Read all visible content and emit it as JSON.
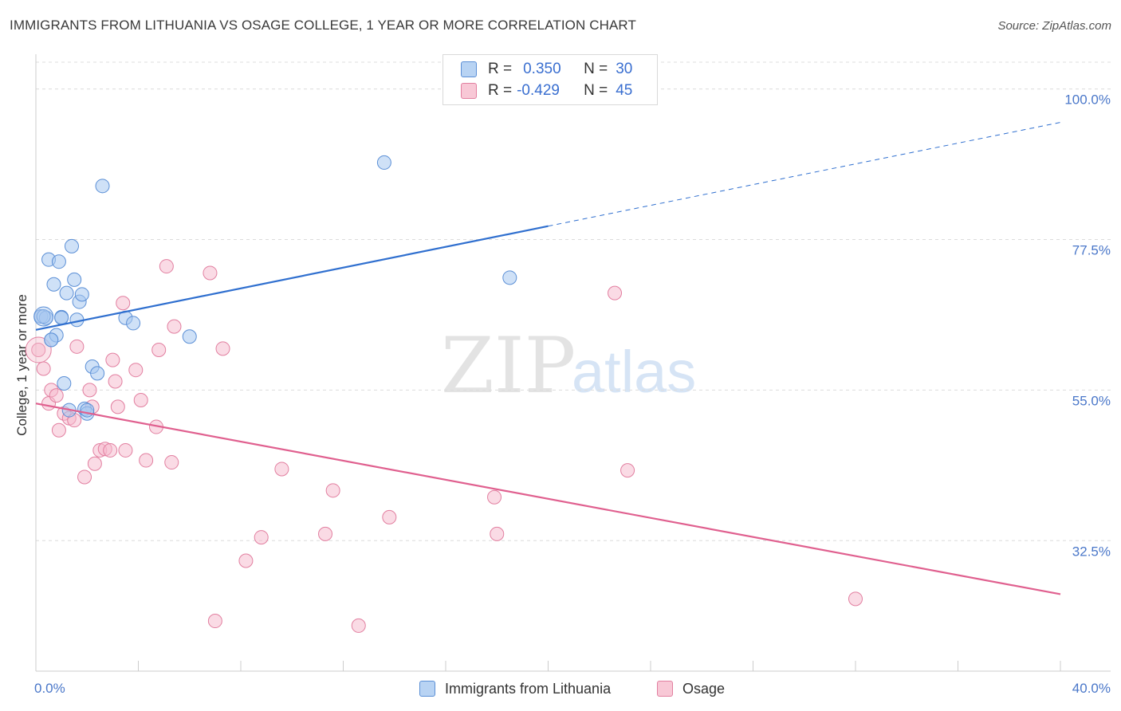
{
  "title": "IMMIGRANTS FROM LITHUANIA VS OSAGE COLLEGE, 1 YEAR OR MORE CORRELATION CHART",
  "source": "Source: ZipAtlas.com",
  "watermark": {
    "zip": "ZIP",
    "atlas": "atlas"
  },
  "legend_top": {
    "rows": [
      {
        "r_label": "R =",
        "r_value": "0.350",
        "n_label": "N =",
        "n_value": "30"
      },
      {
        "r_label": "R =",
        "r_value": "-0.429",
        "n_label": "N =",
        "n_value": "45"
      }
    ]
  },
  "legend_bottom": {
    "items": [
      {
        "label": "Immigrants from Lithuania"
      },
      {
        "label": "Osage"
      }
    ]
  },
  "colors": {
    "blue_fill": "#a8c8f0",
    "blue_stroke": "#5b8fd6",
    "blue_line": "#2f6fcf",
    "pink_fill": "#f5b8cb",
    "pink_stroke": "#e27fa0",
    "pink_line": "#e0608f",
    "grid": "#dcdcdc",
    "axis_text": "#4a77c9"
  },
  "chart_data": {
    "type": "scatter",
    "title": "IMMIGRANTS FROM LITHUANIA VS OSAGE COLLEGE, 1 YEAR OR MORE CORRELATION CHART",
    "xlabel": "",
    "ylabel": "College, 1 year or more",
    "xlim": [
      0,
      40
    ],
    "ylim": [
      13,
      104
    ],
    "x_tick_labels": [
      "0.0%",
      "40.0%"
    ],
    "y_ticks": [
      32.5,
      55.0,
      77.5,
      100.0
    ],
    "y_tick_labels": [
      "32.5%",
      "55.0%",
      "77.5%",
      "100.0%"
    ],
    "grid": true,
    "series": [
      {
        "name": "Immigrants from Lithuania",
        "r": 0.35,
        "n": 30,
        "trend": {
          "x0": 0,
          "y0": 64.0,
          "x1": 20.0,
          "y1": 79.5,
          "dash_x1": 40.0,
          "dash_y1": 95.0
        },
        "points": [
          [
            0.2,
            66.0
          ],
          [
            0.4,
            65.8
          ],
          [
            0.5,
            74.5
          ],
          [
            0.6,
            62.5
          ],
          [
            0.7,
            70.8
          ],
          [
            0.8,
            63.2
          ],
          [
            0.9,
            74.2
          ],
          [
            1.0,
            65.9
          ],
          [
            1.1,
            56.0
          ],
          [
            1.2,
            69.5
          ],
          [
            1.3,
            52.0
          ],
          [
            1.4,
            76.5
          ],
          [
            1.5,
            71.5
          ],
          [
            1.6,
            65.5
          ],
          [
            1.7,
            68.2
          ],
          [
            1.8,
            69.3
          ],
          [
            1.9,
            52.2
          ],
          [
            2.0,
            51.5
          ],
          [
            2.2,
            58.5
          ],
          [
            2.4,
            57.5
          ],
          [
            2.6,
            85.5
          ],
          [
            3.5,
            65.8
          ],
          [
            3.8,
            65.0
          ],
          [
            6.0,
            63.0
          ],
          [
            13.6,
            89.0
          ],
          [
            18.5,
            71.8
          ],
          [
            0.3,
            66.0
          ],
          [
            0.6,
            62.5
          ],
          [
            2.0,
            52.0
          ],
          [
            1.0,
            65.8
          ]
        ]
      },
      {
        "name": "Osage",
        "r": -0.429,
        "n": 45,
        "trend": {
          "x0": 0,
          "y0": 53.0,
          "x1": 40.0,
          "y1": 24.5
        },
        "points": [
          [
            0.1,
            61.0
          ],
          [
            0.3,
            58.2
          ],
          [
            0.5,
            53.0
          ],
          [
            0.6,
            55.0
          ],
          [
            0.8,
            54.2
          ],
          [
            0.9,
            49.0
          ],
          [
            1.1,
            51.5
          ],
          [
            1.3,
            50.8
          ],
          [
            1.5,
            50.5
          ],
          [
            1.6,
            61.5
          ],
          [
            1.9,
            42.0
          ],
          [
            2.1,
            55.0
          ],
          [
            2.3,
            44.0
          ],
          [
            2.5,
            46.0
          ],
          [
            2.7,
            46.2
          ],
          [
            2.9,
            46.0
          ],
          [
            3.0,
            59.5
          ],
          [
            3.1,
            56.3
          ],
          [
            3.2,
            52.5
          ],
          [
            3.4,
            68.0
          ],
          [
            3.5,
            46.0
          ],
          [
            3.9,
            58.0
          ],
          [
            4.1,
            53.5
          ],
          [
            4.3,
            44.5
          ],
          [
            4.7,
            49.5
          ],
          [
            4.8,
            61.0
          ],
          [
            5.1,
            73.5
          ],
          [
            5.3,
            44.2
          ],
          [
            5.4,
            64.5
          ],
          [
            6.8,
            72.5
          ],
          [
            7.0,
            20.5
          ],
          [
            7.3,
            61.2
          ],
          [
            8.2,
            29.5
          ],
          [
            8.8,
            33.0
          ],
          [
            9.6,
            43.2
          ],
          [
            11.3,
            33.5
          ],
          [
            11.6,
            40.0
          ],
          [
            12.6,
            19.8
          ],
          [
            13.8,
            36.0
          ],
          [
            17.9,
            39.0
          ],
          [
            18.0,
            33.5
          ],
          [
            22.6,
            69.5
          ],
          [
            23.1,
            43.0
          ],
          [
            32.0,
            23.8
          ],
          [
            2.2,
            52.5
          ]
        ]
      }
    ]
  }
}
